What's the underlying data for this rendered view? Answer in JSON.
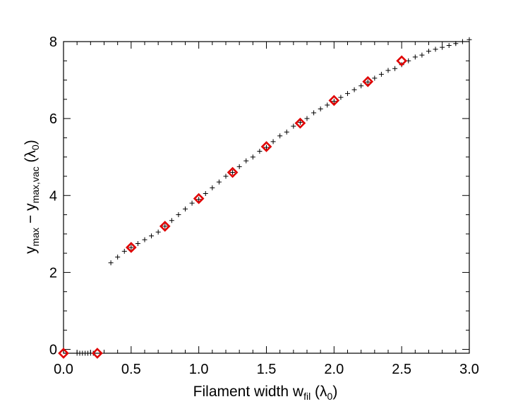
{
  "chart_data": {
    "type": "scatter",
    "xlabel": "Filament width w_fil (λ0)",
    "ylabel": "y_max − y_max,vac (λ0)",
    "xlim": [
      0.0,
      3.0
    ],
    "ylim": [
      -0.1,
      8.0
    ],
    "x_ticks": [
      "0.0",
      "0.5",
      "1.0",
      "1.5",
      "2.0",
      "2.5",
      "3.0"
    ],
    "y_ticks": [
      "0",
      "2",
      "4",
      "6",
      "8"
    ],
    "grid": false,
    "series": [
      {
        "marker": "plus",
        "color": "#000000",
        "x": [
          0.1,
          0.12,
          0.14,
          0.16,
          0.18,
          0.2,
          0.22,
          0.35,
          0.4,
          0.45,
          0.5,
          0.55,
          0.6,
          0.65,
          0.7,
          0.75,
          0.8,
          0.85,
          0.9,
          0.95,
          1.0,
          1.05,
          1.1,
          1.15,
          1.2,
          1.25,
          1.3,
          1.35,
          1.4,
          1.45,
          1.5,
          1.55,
          1.6,
          1.65,
          1.7,
          1.75,
          1.8,
          1.85,
          1.9,
          1.95,
          2.0,
          2.05,
          2.1,
          2.15,
          2.2,
          2.25,
          2.3,
          2.35,
          2.4,
          2.45,
          2.5,
          2.55,
          2.6,
          2.65,
          2.7,
          2.75,
          2.8,
          2.85,
          2.9,
          2.95,
          3.0
        ],
        "y": [
          -0.1,
          -0.1,
          -0.1,
          -0.1,
          -0.1,
          -0.1,
          -0.1,
          2.25,
          2.4,
          2.55,
          2.65,
          2.75,
          2.85,
          2.95,
          3.05,
          3.2,
          3.35,
          3.5,
          3.65,
          3.8,
          3.9,
          4.05,
          4.2,
          4.35,
          4.5,
          4.6,
          4.75,
          4.9,
          5.0,
          5.15,
          5.25,
          5.4,
          5.55,
          5.65,
          5.8,
          5.9,
          6.0,
          6.15,
          6.25,
          6.35,
          6.45,
          6.55,
          6.65,
          6.75,
          6.85,
          6.95,
          7.05,
          7.15,
          7.25,
          7.3,
          7.4,
          7.5,
          7.6,
          7.65,
          7.75,
          7.8,
          7.85,
          7.9,
          7.95,
          8.0,
          8.05
        ]
      },
      {
        "marker": "diamond",
        "color": "#e00000",
        "x": [
          0.0,
          0.25,
          0.5,
          0.75,
          1.0,
          1.25,
          1.5,
          1.75,
          2.0,
          2.25,
          2.5
        ],
        "y": [
          -0.1,
          -0.1,
          2.65,
          3.2,
          3.92,
          4.6,
          5.27,
          5.88,
          6.47,
          6.96,
          7.5
        ]
      }
    ]
  }
}
